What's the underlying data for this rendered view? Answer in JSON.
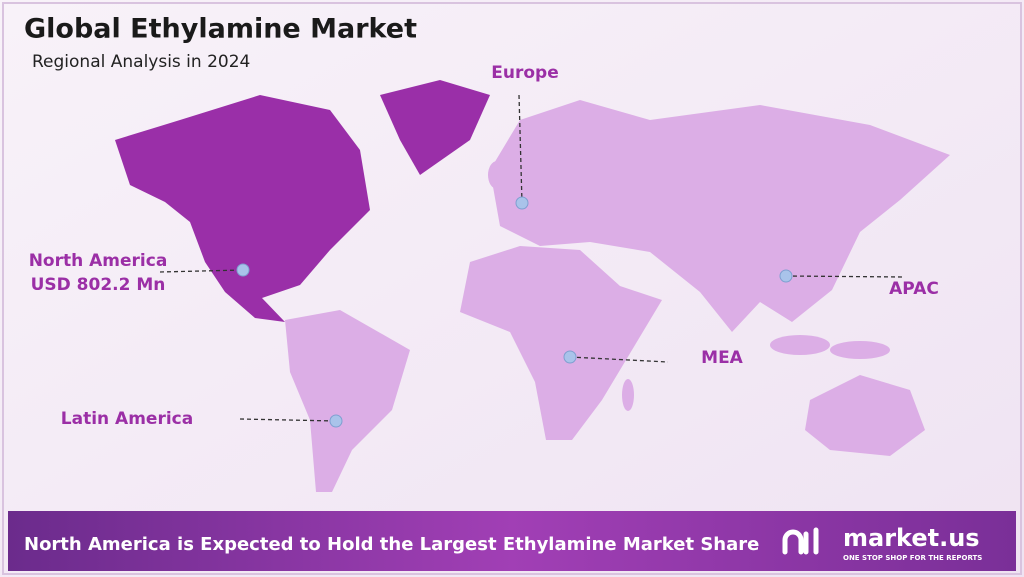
{
  "header": {
    "title": "Global Ethylamine Market",
    "subtitle": "Regional Analysis in 2024"
  },
  "regions": [
    {
      "lines": [
        "North America",
        "USD 802.2 Mn"
      ]
    },
    {
      "lines": [
        "Europe"
      ]
    },
    {
      "lines": [
        "APAC"
      ]
    },
    {
      "lines": [
        "MEA"
      ]
    },
    {
      "lines": [
        "Latin America"
      ]
    }
  ],
  "footer": {
    "text": "North America is Expected to Hold the Largest Ethylamine Market Share"
  },
  "logo": {
    "name": "market.us",
    "tagline": "ONE STOP SHOP FOR THE REPORTS"
  }
}
